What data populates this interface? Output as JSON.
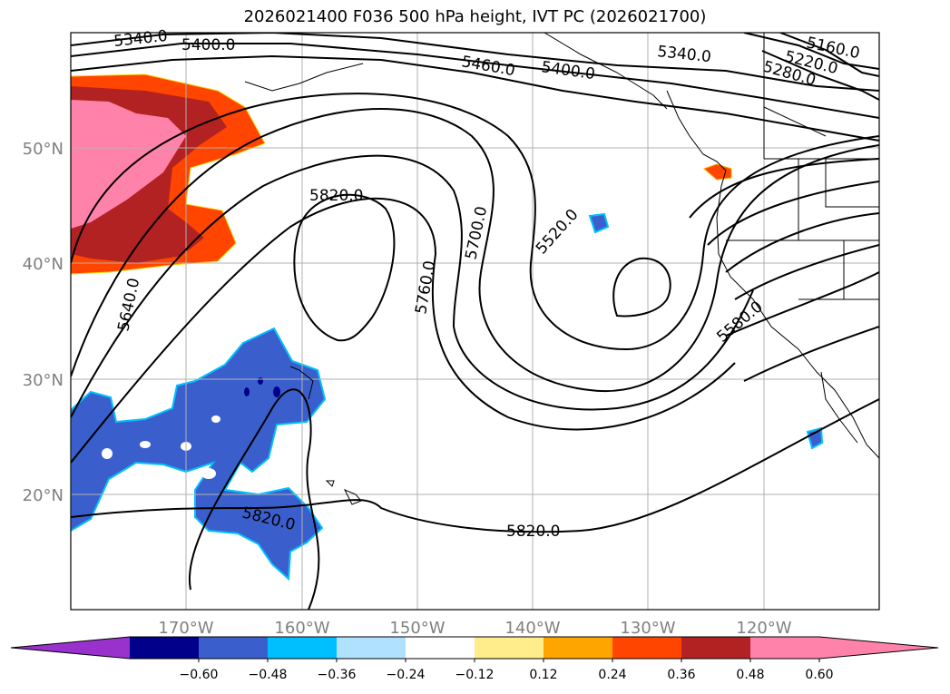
{
  "title": "2026021400 F036 500 hPa height, IVT PC (2026021700)",
  "lat_labels": [
    "50°N",
    "40°N",
    "30°N",
    "20°N"
  ],
  "lon_labels": [
    "170°W",
    "160°W",
    "150°W",
    "140°W",
    "130°W",
    "120°W"
  ],
  "contour_labels": [
    "5340.0",
    "5400.0",
    "5460.0",
    "5400.0",
    "5340.0",
    "5160.0",
    "5220.0",
    "5280.0",
    "5820.0",
    "5700.0",
    "5520.0",
    "5640.0",
    "5760.0",
    "5580.0",
    "5820.0",
    "5820.0"
  ],
  "colorbar": {
    "ticks": [
      "−0.60",
      "−0.48",
      "−0.36",
      "−0.24",
      "−0.12",
      "0.12",
      "0.24",
      "0.36",
      "0.48",
      "0.60"
    ],
    "colors": [
      "#9932cc",
      "#00008b",
      "#3a5fcd",
      "#00bfff",
      "#b0e2ff",
      "#ffffff",
      "#ffec8b",
      "#ffa500",
      "#ff4500",
      "#b22222",
      "#ff82ab",
      "#ff82ab"
    ]
  }
}
